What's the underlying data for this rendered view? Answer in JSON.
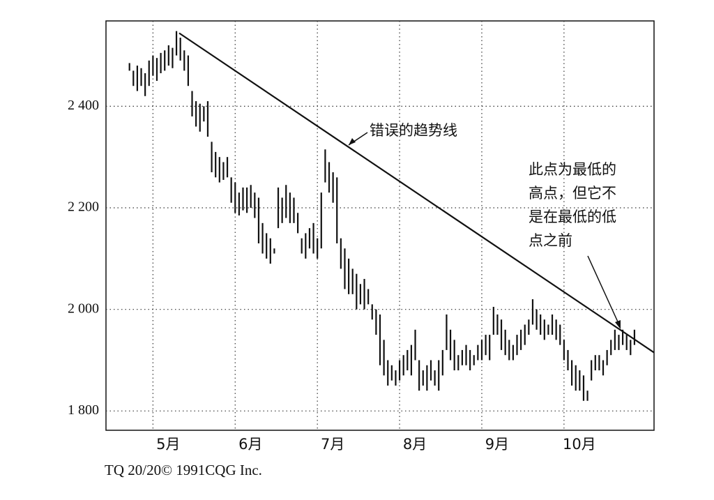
{
  "chart_data": {
    "type": "ohlc",
    "x": [
      6,
      7,
      8,
      9,
      10,
      11,
      12,
      13,
      14,
      15,
      16,
      17,
      18,
      19,
      20,
      21,
      22,
      23,
      24,
      25,
      26,
      27,
      28,
      29,
      30,
      31,
      32,
      33,
      34,
      35,
      36,
      37,
      38,
      39,
      40,
      41,
      42,
      43,
      44,
      45,
      46,
      47,
      48,
      49,
      50,
      51,
      52,
      53,
      54,
      55,
      56,
      57,
      58,
      59,
      60,
      61,
      62,
      63,
      64,
      65,
      66,
      67,
      68,
      69,
      70,
      71,
      72,
      73,
      74,
      75,
      76,
      77,
      78,
      79,
      80,
      81,
      82,
      83,
      84,
      85,
      86,
      87,
      88,
      89,
      90,
      91,
      92,
      93,
      94,
      95,
      96,
      97,
      98,
      99,
      100,
      101,
      102,
      103,
      104,
      105,
      106,
      107,
      108,
      109,
      110,
      111,
      112,
      113,
      114,
      115,
      116,
      117,
      118,
      119,
      120,
      121,
      122,
      123,
      124,
      125,
      126,
      127,
      128,
      129,
      130,
      131,
      132,
      133,
      134,
      135
    ],
    "high": [
      2485,
      2470,
      2480,
      2475,
      2465,
      2490,
      2500,
      2495,
      2505,
      2510,
      2520,
      2515,
      2548,
      2535,
      2510,
      2500,
      2430,
      2410,
      2405,
      2400,
      2410,
      2330,
      2310,
      2300,
      2290,
      2300,
      2260,
      2250,
      2230,
      2240,
      2240,
      2245,
      2230,
      2220,
      2170,
      2150,
      2140,
      2120,
      2240,
      2220,
      2245,
      2230,
      2220,
      2190,
      2140,
      2150,
      2160,
      2170,
      2140,
      2230,
      2315,
      2290,
      2270,
      2260,
      2140,
      2120,
      2100,
      2080,
      2070,
      2050,
      2060,
      2040,
      2010,
      2000,
      1990,
      1940,
      1900,
      1890,
      1880,
      1900,
      1910,
      1920,
      1930,
      1960,
      1900,
      1880,
      1890,
      1900,
      1880,
      1900,
      1920,
      1990,
      1960,
      1940,
      1910,
      1920,
      1930,
      1920,
      1910,
      1930,
      1940,
      1950,
      1950,
      2005,
      1990,
      1980,
      1960,
      1940,
      1930,
      1950,
      1960,
      1970,
      1980,
      2020,
      2000,
      1990,
      1980,
      1970,
      1990,
      1980,
      1970,
      1940,
      1920,
      1900,
      1890,
      1880,
      1870,
      1840,
      1900,
      1910,
      1910,
      1900,
      1920,
      1940,
      1960,
      1950,
      1960,
      1950,
      1940,
      1960
    ],
    "low": [
      2470,
      2440,
      2430,
      2440,
      2420,
      2440,
      2460,
      2450,
      2465,
      2470,
      2480,
      2475,
      2500,
      2490,
      2470,
      2440,
      2380,
      2360,
      2350,
      2370,
      2340,
      2270,
      2260,
      2250,
      2255,
      2260,
      2210,
      2190,
      2185,
      2195,
      2190,
      2200,
      2180,
      2130,
      2110,
      2100,
      2090,
      2110,
      2160,
      2170,
      2180,
      2170,
      2170,
      2150,
      2110,
      2100,
      2120,
      2110,
      2100,
      2120,
      2250,
      2230,
      2210,
      2130,
      2080,
      2040,
      2030,
      2030,
      2000,
      2010,
      2000,
      2010,
      1980,
      1950,
      1890,
      1870,
      1850,
      1860,
      1850,
      1860,
      1870,
      1880,
      1870,
      1900,
      1840,
      1850,
      1840,
      1860,
      1850,
      1840,
      1870,
      1920,
      1900,
      1880,
      1880,
      1890,
      1890,
      1880,
      1890,
      1900,
      1900,
      1910,
      1900,
      1950,
      1950,
      1920,
      1910,
      1900,
      1900,
      1910,
      1920,
      1930,
      1950,
      1970,
      1960,
      1950,
      1940,
      1950,
      1950,
      1940,
      1930,
      1900,
      1880,
      1850,
      1840,
      1840,
      1820,
      1820,
      1860,
      1880,
      1880,
      1870,
      1890,
      1910,
      1920,
      1920,
      1930,
      1920,
      1910,
      1930
    ],
    "color": "#111111",
    "xlim": [
      0,
      140
    ],
    "xticks": [
      {
        "value": 12,
        "label": "5月"
      },
      {
        "value": 33,
        "label": "6月"
      },
      {
        "value": 54,
        "label": "7月"
      },
      {
        "value": 75,
        "label": "8月"
      },
      {
        "value": 96,
        "label": "9月"
      },
      {
        "value": 117,
        "label": "10月"
      }
    ],
    "ylim": [
      1762,
      2568
    ],
    "yticks": [
      {
        "value": 1800,
        "label": "1 800"
      },
      {
        "value": 2000,
        "label": "2 000"
      },
      {
        "value": 2200,
        "label": "2 200"
      },
      {
        "value": 2400,
        "label": "2 400"
      }
    ],
    "grid": true,
    "trendline": {
      "x": [
        18.7,
        140
      ],
      "y": [
        2544,
        1915
      ]
    },
    "annotations": [
      {
        "text": "错误的趋势线"
      },
      {
        "lines": [
          "此点为最低的",
          "高点，但它不",
          "是在最低的低",
          "点之前"
        ]
      }
    ],
    "footer": "TQ 20/20© 1991CQG Inc."
  }
}
